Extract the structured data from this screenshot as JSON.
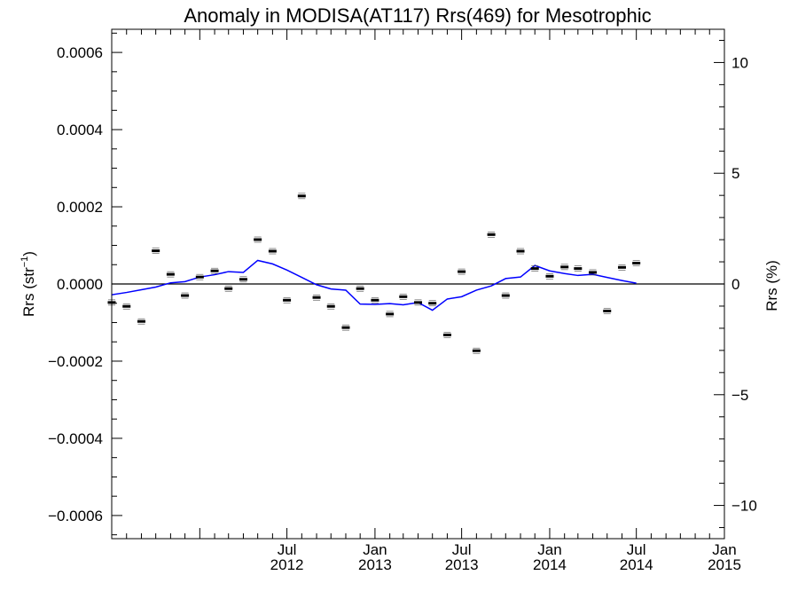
{
  "chart_data": {
    "type": "line",
    "title": "Anomaly in MODISA(AT117) Rrs(469) for Mesotrophic",
    "ylabel_left": {
      "main": "Rrs (str",
      "sup": "−1",
      "end": ")"
    },
    "ylabel_right": "Rrs (%)",
    "xlim": [
      "2011-07-01",
      "2015-01-01"
    ],
    "ylim_left": [
      -0.00066,
      0.00066
    ],
    "ylim_right": [
      -11.5,
      11.5
    ],
    "x_ticks": [
      {
        "date": "2012-07-01",
        "month": "Jul",
        "year": "2012"
      },
      {
        "date": "2013-01-01",
        "month": "Jan",
        "year": "2013"
      },
      {
        "date": "2013-07-01",
        "month": "Jul",
        "year": "2013"
      },
      {
        "date": "2014-01-01",
        "month": "Jan",
        "year": "2014"
      },
      {
        "date": "2014-07-01",
        "month": "Jul",
        "year": "2014"
      },
      {
        "date": "2015-01-01",
        "month": "Jan",
        "year": "2015"
      }
    ],
    "y_ticks_left": [
      {
        "value": 0.0006,
        "label": "0.0006"
      },
      {
        "value": 0.0004,
        "label": "0.0004"
      },
      {
        "value": 0.0002,
        "label": "0.0002"
      },
      {
        "value": 0.0,
        "label": "0.0000"
      },
      {
        "value": -0.0002,
        "label": "−0.0002"
      },
      {
        "value": -0.0004,
        "label": "−0.0004"
      },
      {
        "value": -0.0006,
        "label": "−0.0006"
      }
    ],
    "y_ticks_right": [
      {
        "value": 10,
        "label": "10"
      },
      {
        "value": 5,
        "label": "5"
      },
      {
        "value": 0,
        "label": "0"
      },
      {
        "value": -5,
        "label": "−5"
      },
      {
        "value": -10,
        "label": "−10"
      }
    ],
    "zero_line": true,
    "series": [
      {
        "type": "scatter",
        "marker": "short horizontal bar with error bars",
        "color": "#000000",
        "points": [
          {
            "x": "2011-07-01",
            "y": -4.8e-05
          },
          {
            "x": "2011-08-01",
            "y": -5.8e-05
          },
          {
            "x": "2011-09-01",
            "y": -9.7e-05
          },
          {
            "x": "2011-10-01",
            "y": 8.6e-05
          },
          {
            "x": "2011-11-01",
            "y": 2.5e-05
          },
          {
            "x": "2011-12-01",
            "y": -3e-05
          },
          {
            "x": "2012-01-01",
            "y": 1.8e-05
          },
          {
            "x": "2012-02-01",
            "y": 3.4e-05
          },
          {
            "x": "2012-03-01",
            "y": -1.2e-05
          },
          {
            "x": "2012-04-01",
            "y": 1.2e-05
          },
          {
            "x": "2012-05-01",
            "y": 0.000115
          },
          {
            "x": "2012-06-01",
            "y": 8.5e-05
          },
          {
            "x": "2012-07-01",
            "y": -4.2e-05
          },
          {
            "x": "2012-08-01",
            "y": 0.000228
          },
          {
            "x": "2012-09-01",
            "y": -3.5e-05
          },
          {
            "x": "2012-10-01",
            "y": -5.8e-05
          },
          {
            "x": "2012-11-01",
            "y": -0.000113
          },
          {
            "x": "2012-12-01",
            "y": -1.2e-05
          },
          {
            "x": "2013-01-01",
            "y": -4.2e-05
          },
          {
            "x": "2013-02-01",
            "y": -7.8e-05
          },
          {
            "x": "2013-03-01",
            "y": -3.3e-05
          },
          {
            "x": "2013-04-01",
            "y": -4.8e-05
          },
          {
            "x": "2013-05-01",
            "y": -5e-05
          },
          {
            "x": "2013-06-01",
            "y": -0.000132
          },
          {
            "x": "2013-07-01",
            "y": 3.2e-05
          },
          {
            "x": "2013-08-01",
            "y": -0.000173
          },
          {
            "x": "2013-09-01",
            "y": 0.000128
          },
          {
            "x": "2013-10-01",
            "y": -3e-05
          },
          {
            "x": "2013-11-01",
            "y": 8.5e-05
          },
          {
            "x": "2013-12-01",
            "y": 4e-05
          },
          {
            "x": "2014-01-01",
            "y": 2e-05
          },
          {
            "x": "2014-02-01",
            "y": 4.4e-05
          },
          {
            "x": "2014-03-01",
            "y": 4e-05
          },
          {
            "x": "2014-04-01",
            "y": 3e-05
          },
          {
            "x": "2014-05-01",
            "y": -7e-05
          },
          {
            "x": "2014-06-01",
            "y": 4.3e-05
          },
          {
            "x": "2014-07-01",
            "y": 5.4e-05
          }
        ]
      },
      {
        "type": "line",
        "color": "#0000ff",
        "points": [
          {
            "x": "2011-07-01",
            "y": -2.8e-05
          },
          {
            "x": "2011-08-01",
            "y": -2.2e-05
          },
          {
            "x": "2011-09-01",
            "y": -1.5e-05
          },
          {
            "x": "2011-10-01",
            "y": -8e-06
          },
          {
            "x": "2011-11-01",
            "y": 3e-06
          },
          {
            "x": "2011-12-01",
            "y": 6e-06
          },
          {
            "x": "2012-01-01",
            "y": 1.8e-05
          },
          {
            "x": "2012-02-01",
            "y": 2.4e-05
          },
          {
            "x": "2012-03-01",
            "y": 3.2e-05
          },
          {
            "x": "2012-04-01",
            "y": 3e-05
          },
          {
            "x": "2012-05-01",
            "y": 6.1e-05
          },
          {
            "x": "2012-06-01",
            "y": 5.2e-05
          },
          {
            "x": "2012-07-01",
            "y": 3.6e-05
          },
          {
            "x": "2012-08-01",
            "y": 1.7e-05
          },
          {
            "x": "2012-09-01",
            "y": -2e-06
          },
          {
            "x": "2012-10-01",
            "y": -1.3e-05
          },
          {
            "x": "2012-11-01",
            "y": -1.6e-05
          },
          {
            "x": "2012-12-01",
            "y": -5.2e-05
          },
          {
            "x": "2013-01-01",
            "y": -5.3e-05
          },
          {
            "x": "2013-02-01",
            "y": -5.1e-05
          },
          {
            "x": "2013-03-01",
            "y": -5.4e-05
          },
          {
            "x": "2013-04-01",
            "y": -4.8e-05
          },
          {
            "x": "2013-05-01",
            "y": -6.8e-05
          },
          {
            "x": "2013-06-01",
            "y": -3.9e-05
          },
          {
            "x": "2013-07-01",
            "y": -3.3e-05
          },
          {
            "x": "2013-08-01",
            "y": -1.6e-05
          },
          {
            "x": "2013-09-01",
            "y": -5e-06
          },
          {
            "x": "2013-10-01",
            "y": 1.4e-05
          },
          {
            "x": "2013-11-01",
            "y": 1.8e-05
          },
          {
            "x": "2013-12-01",
            "y": 4.8e-05
          },
          {
            "x": "2014-01-01",
            "y": 3.4e-05
          },
          {
            "x": "2014-02-01",
            "y": 2.7e-05
          },
          {
            "x": "2014-03-01",
            "y": 2.2e-05
          },
          {
            "x": "2014-04-01",
            "y": 2.5e-05
          },
          {
            "x": "2014-05-01",
            "y": 1.7e-05
          },
          {
            "x": "2014-06-01",
            "y": 9e-06
          },
          {
            "x": "2014-07-01",
            "y": 2e-06
          }
        ]
      }
    ],
    "grid": false,
    "legend": "none"
  }
}
